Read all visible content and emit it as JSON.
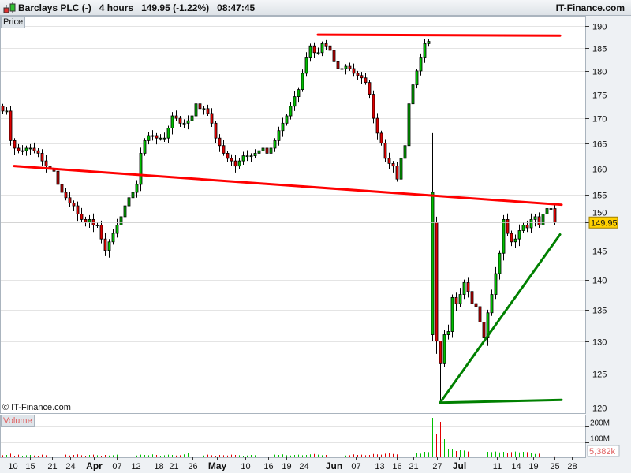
{
  "header": {
    "instrument": "Barclays PLC (-)",
    "timeframe": "4 hours",
    "last_price": "149.95",
    "change": "(-1.22%)",
    "time": "08:47:45",
    "brand": "IT-Finance.com"
  },
  "price_panel_label": "Price",
  "volume_panel_label": "Volume",
  "watermark": "© IT-Finance.com",
  "colors": {
    "up": "#00c000",
    "down": "#e00000",
    "resistance": "#ff0000",
    "support": "#008000",
    "price_tag": "#ffd000",
    "axis_bg": "#eef1f4"
  },
  "chart_data": {
    "type": "candlestick",
    "scale": "log",
    "ylim": [
      120,
      190
    ],
    "y_ticks": [
      120,
      125,
      130,
      135,
      140,
      145,
      150,
      155,
      160,
      165,
      170,
      175,
      180,
      185,
      190
    ],
    "last_value_label": "149.95",
    "closes": [
      171.5,
      171.5,
      165.5,
      164,
      163.5,
      163.5,
      164,
      164,
      163.5,
      163,
      161.5,
      160.5,
      160,
      159.5,
      157,
      155.5,
      154.5,
      153.5,
      153,
      151.5,
      150.5,
      150,
      150.5,
      149.5,
      149.5,
      147,
      145,
      146.5,
      148,
      149.5,
      151,
      153,
      154.5,
      155.5,
      157,
      163,
      165.5,
      166.5,
      166.5,
      166,
      166,
      166,
      168,
      170.5,
      170,
      169,
      169,
      169.5,
      170.5,
      173,
      172,
      172,
      171,
      169,
      166,
      164.5,
      163,
      162,
      161.5,
      160.5,
      161.5,
      162.5,
      162.5,
      162.5,
      163,
      163.5,
      164,
      163,
      164,
      165.5,
      167.5,
      169,
      170.5,
      172.5,
      174.5,
      176,
      179.5,
      183,
      185.5,
      184,
      184,
      186,
      185.5,
      184.5,
      182,
      180.5,
      180.5,
      181,
      180.5,
      179.5,
      179,
      178.5,
      177.5,
      175,
      170,
      167,
      165,
      162,
      161,
      160.5,
      158,
      162,
      164.5,
      173,
      177,
      180,
      183,
      186,
      186.5,
      155.5,
      130,
      126.5,
      131,
      131.5,
      137,
      136,
      137.5,
      139.5,
      138,
      136,
      135.5,
      133,
      130.5,
      134.5,
      137.5,
      141,
      144.5,
      150.5,
      148,
      146.5,
      147,
      148.5,
      149.5,
      149,
      150.5,
      151,
      149.5,
      151.5,
      152.5,
      152.5,
      149.95
    ],
    "first_open": 172.5,
    "wick_extremes": [
      {
        "index": 49,
        "high": 180.5
      },
      {
        "index": 109,
        "open": 131,
        "high": 167,
        "low": 130
      },
      {
        "index": 110,
        "open": 150,
        "high": 151,
        "low": 128
      },
      {
        "index": 111,
        "high": 128,
        "low": 120.5
      }
    ],
    "volume": {
      "unit": "M",
      "ticks": [
        "100M",
        "200M"
      ],
      "tick_values": [
        100,
        200
      ],
      "last_label": "5,382k",
      "values": [
        18,
        20,
        28,
        15,
        22,
        12,
        18,
        20,
        16,
        14,
        22,
        18,
        25,
        20,
        15,
        18,
        22,
        16,
        20,
        24,
        18,
        14,
        20,
        22,
        18,
        15,
        20,
        16,
        18,
        22,
        26,
        28,
        20,
        18,
        16,
        22,
        20,
        18,
        24,
        20,
        15,
        18,
        22,
        20,
        16,
        18,
        24,
        30,
        22,
        18,
        20,
        16,
        22,
        18,
        14,
        20,
        18,
        16,
        22,
        20,
        18,
        14,
        16,
        20,
        18,
        22,
        20,
        16,
        18,
        22,
        20,
        24,
        18,
        16,
        20,
        22,
        18,
        20,
        24,
        26,
        22,
        18,
        20,
        16,
        18,
        22,
        20,
        16,
        18,
        24,
        20,
        22,
        18,
        20,
        26,
        24,
        22,
        28,
        30,
        26,
        24,
        28,
        30,
        35,
        32,
        30,
        28,
        40,
        38,
        255,
        155,
        230,
        120,
        60,
        55,
        45,
        50,
        48,
        42,
        40,
        45,
        38,
        35,
        40,
        38,
        42,
        36,
        40,
        34,
        38,
        42,
        36,
        40,
        38,
        30,
        26,
        28,
        24,
        22,
        18,
        5.382
      ]
    },
    "x_ticks": [
      {
        "label": "10",
        "index": 2.6,
        "month": false
      },
      {
        "label": "15",
        "index": 7,
        "month": false
      },
      {
        "label": "21",
        "index": 12.6,
        "month": false
      },
      {
        "label": "24",
        "index": 17.2,
        "month": false
      },
      {
        "label": "Apr",
        "index": 23.2,
        "month": true
      },
      {
        "label": "07",
        "index": 29,
        "month": false
      },
      {
        "label": "12",
        "index": 33.8,
        "month": false
      },
      {
        "label": "18",
        "index": 39.6,
        "month": false
      },
      {
        "label": "21",
        "index": 43.4,
        "month": false
      },
      {
        "label": "26",
        "index": 48.2,
        "month": false
      },
      {
        "label": "May",
        "index": 54.4,
        "month": true
      },
      {
        "label": "10",
        "index": 61.6,
        "month": false
      },
      {
        "label": "16",
        "index": 67.4,
        "month": false
      },
      {
        "label": "19",
        "index": 72,
        "month": false
      },
      {
        "label": "24",
        "index": 76.4,
        "month": false
      },
      {
        "label": "Jun",
        "index": 84,
        "month": true
      },
      {
        "label": "07",
        "index": 89.6,
        "month": false
      },
      {
        "label": "13",
        "index": 95.6,
        "month": false
      },
      {
        "label": "16",
        "index": 100,
        "month": false
      },
      {
        "label": "21",
        "index": 104.2,
        "month": false
      },
      {
        "label": "27",
        "index": 110.2,
        "month": false
      },
      {
        "label": "Jul",
        "index": 115.8,
        "month": true
      },
      {
        "label": "11",
        "index": 125.4,
        "month": false
      },
      {
        "label": "14",
        "index": 130.2,
        "month": false
      },
      {
        "label": "19",
        "index": 134.6,
        "month": false
      },
      {
        "label": "25",
        "index": 140,
        "month": false
      },
      {
        "label": "28",
        "index": 144.4,
        "month": false
      }
    ],
    "trendlines": [
      {
        "name": "descending-resistance",
        "color": "#ff0000",
        "from": {
          "index": 3,
          "price": 160.5
        },
        "to": {
          "index": 141.8,
          "price": 153.2
        }
      },
      {
        "name": "top-resistance",
        "color": "#ff0000",
        "from": {
          "index": 80,
          "price": 188
        },
        "to": {
          "index": 141.4,
          "price": 187.8
        }
      },
      {
        "name": "rising-support",
        "color": "#008000",
        "from": {
          "index": 111,
          "price": 120.7
        },
        "to": {
          "index": 141.4,
          "price": 147.8
        }
      },
      {
        "name": "flat-support",
        "color": "#008000",
        "from": {
          "index": 111,
          "price": 120.7
        },
        "to": {
          "index": 141.8,
          "price": 121.1
        }
      }
    ]
  }
}
